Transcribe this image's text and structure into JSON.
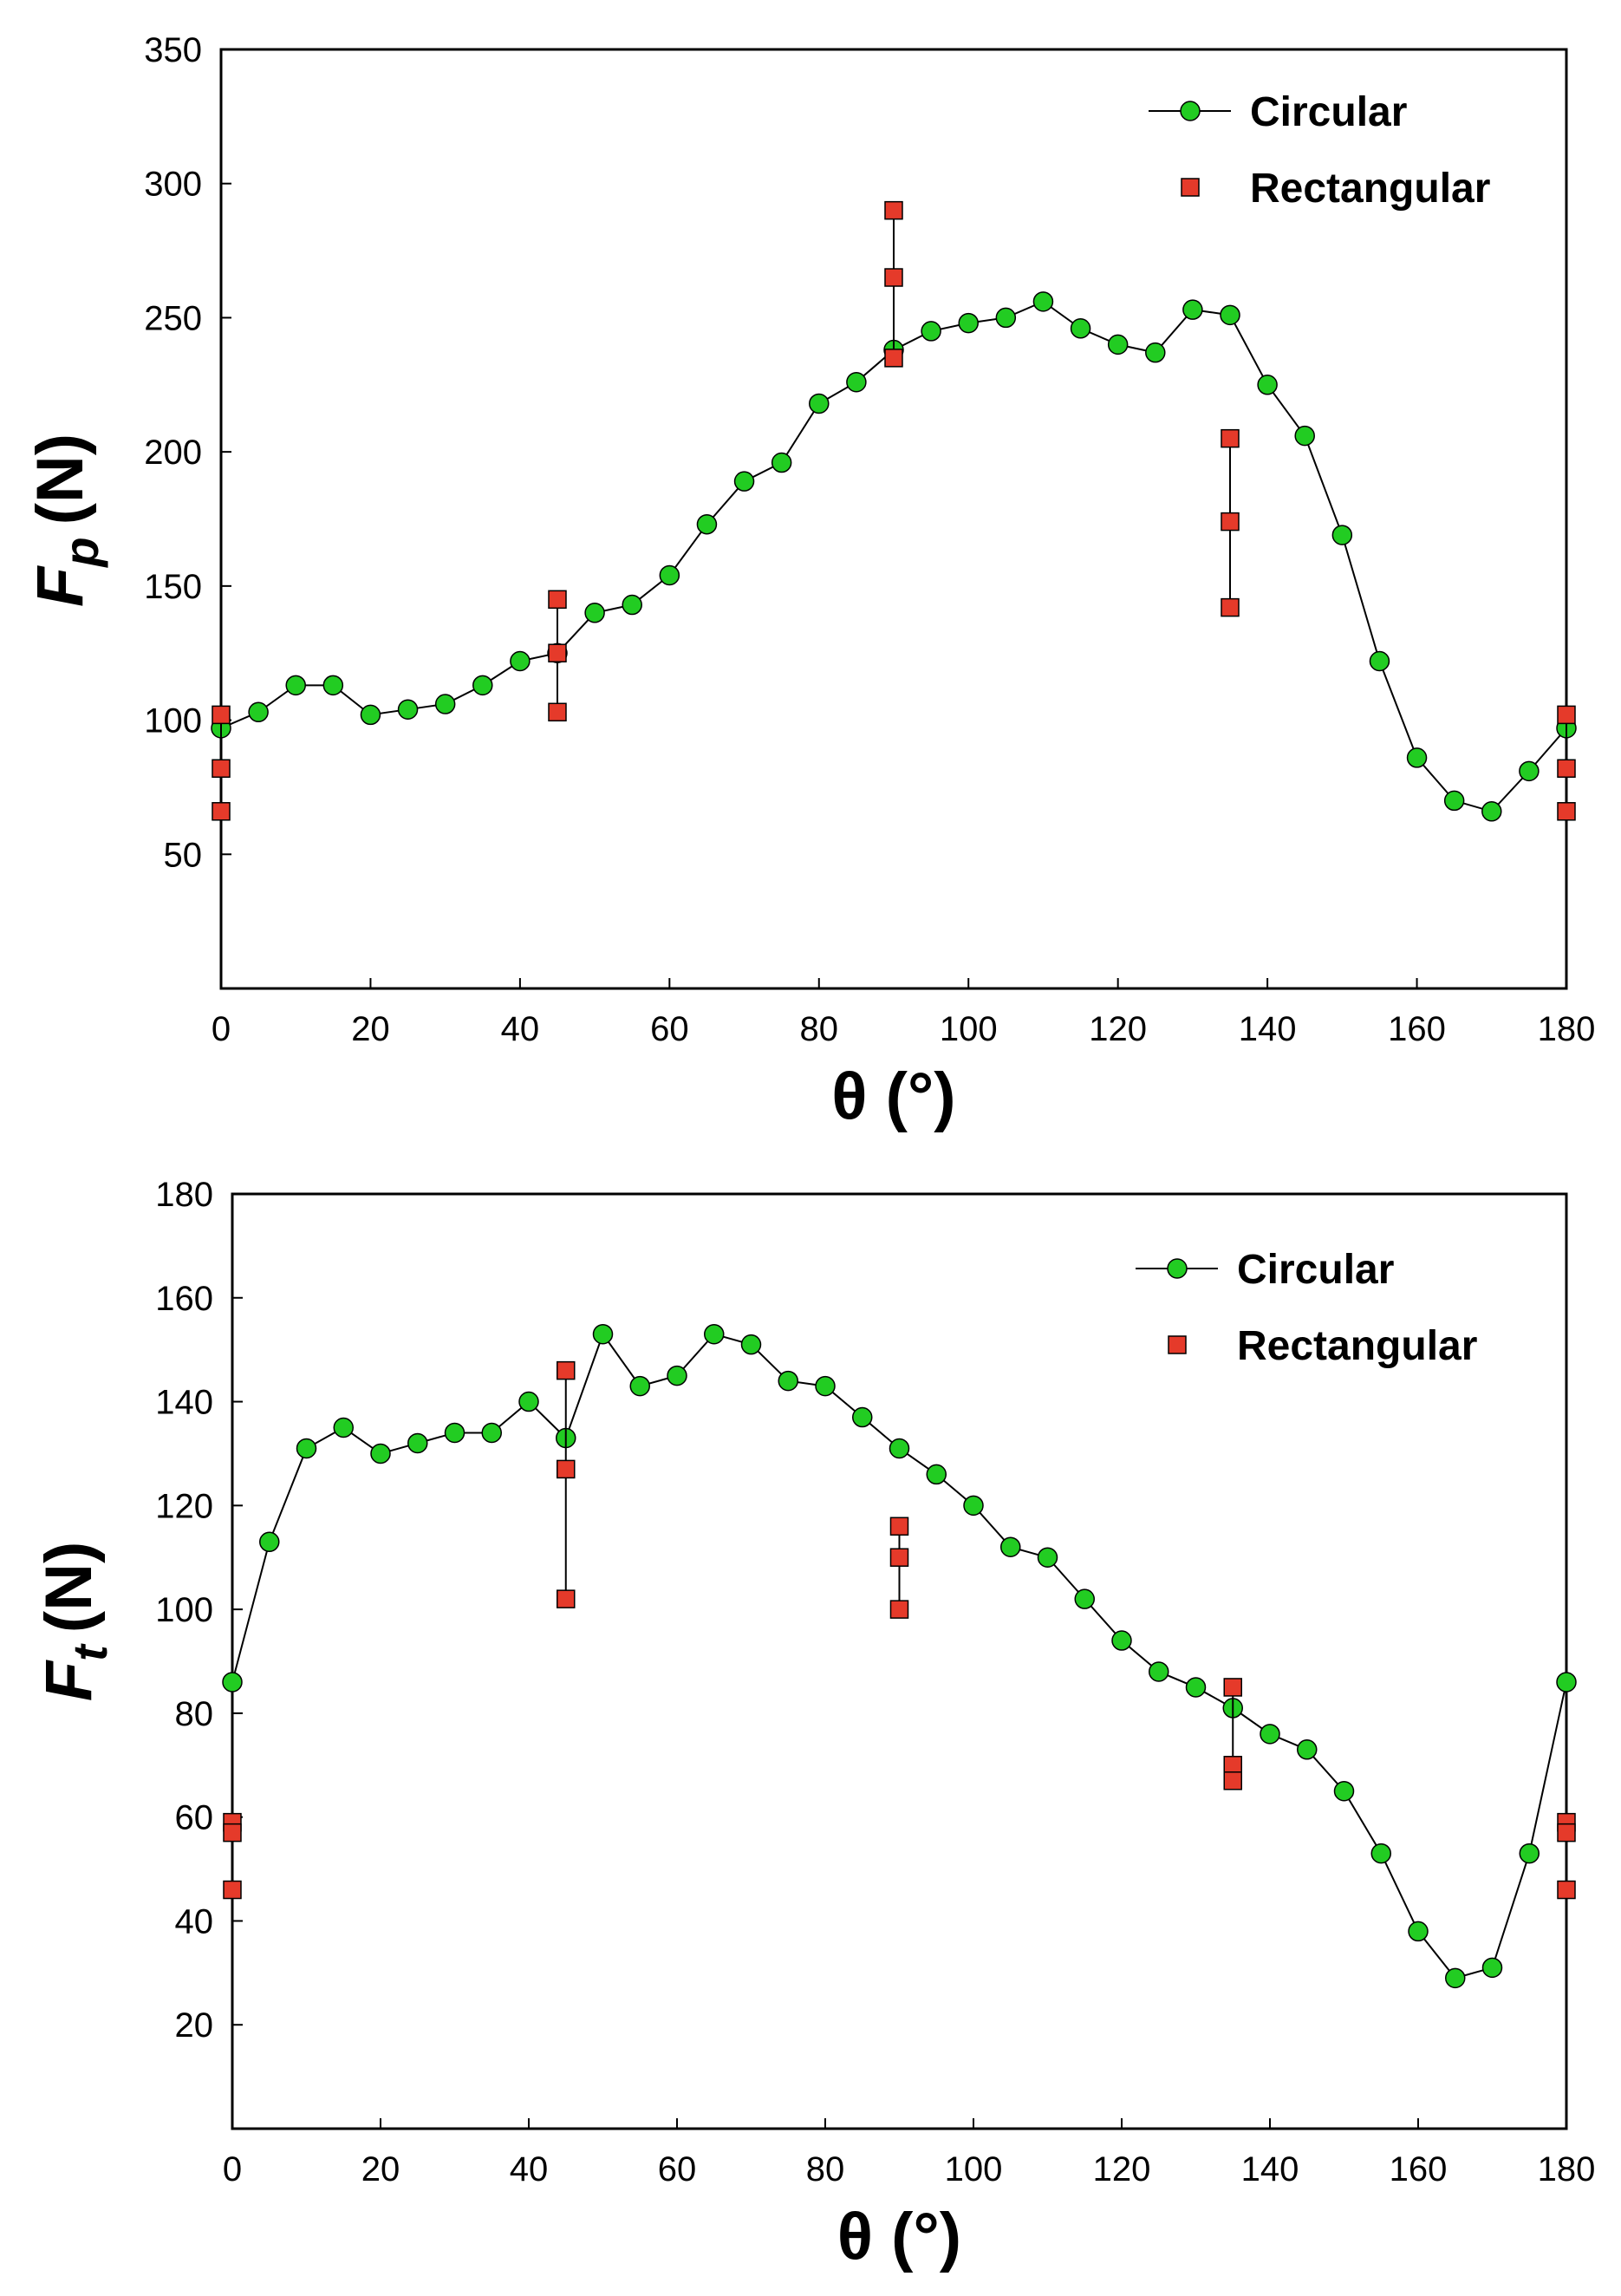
{
  "chart_data": [
    {
      "type": "scatter",
      "title": "",
      "xlabel": "θ (°)",
      "ylabel": {
        "main": "F",
        "sub": "p",
        "unit": "(N)"
      },
      "xlim": [
        0,
        180
      ],
      "ylim": [
        0,
        350
      ],
      "xticks": [
        0,
        20,
        40,
        60,
        80,
        100,
        120,
        140,
        160,
        180
      ],
      "yticks": [
        50,
        100,
        150,
        200,
        250,
        300,
        350
      ],
      "grid": false,
      "legend_position": "top-right",
      "series": [
        {
          "name": "Circular",
          "style": "line-markers",
          "marker": "circle",
          "color": "#22cc22",
          "x": [
            0,
            5,
            10,
            15,
            20,
            25,
            30,
            35,
            40,
            45,
            50,
            55,
            60,
            65,
            70,
            75,
            80,
            85,
            90,
            95,
            100,
            105,
            110,
            115,
            120,
            125,
            130,
            135,
            140,
            145,
            150,
            155,
            160,
            165,
            170,
            175,
            180
          ],
          "y": [
            97,
            103,
            113,
            113,
            102,
            104,
            106,
            113,
            122,
            125,
            140,
            143,
            154,
            173,
            189,
            196,
            218,
            226,
            238,
            245,
            248,
            250,
            256,
            246,
            240,
            237,
            253,
            251,
            225,
            206,
            169,
            122,
            86,
            70,
            66,
            81,
            97
          ]
        },
        {
          "name": "Rectangular",
          "style": "markers-with-range",
          "marker": "square",
          "color": "#e53a2a",
          "points": [
            {
              "x": 0,
              "y": [
                102,
                82,
                66
              ]
            },
            {
              "x": 45,
              "y": [
                145,
                125,
                103
              ]
            },
            {
              "x": 90,
              "y": [
                290,
                265,
                235
              ]
            },
            {
              "x": 135,
              "y": [
                205,
                174,
                142
              ]
            },
            {
              "x": 180,
              "y": [
                102,
                82,
                66
              ]
            }
          ]
        }
      ]
    },
    {
      "type": "scatter",
      "title": "",
      "xlabel": "θ (°)",
      "ylabel": {
        "main": "F",
        "sub": "t",
        "unit": "(N)"
      },
      "xlim": [
        0,
        180
      ],
      "ylim": [
        0,
        180
      ],
      "xticks": [
        0,
        20,
        40,
        60,
        80,
        100,
        120,
        140,
        160,
        180
      ],
      "yticks": [
        20,
        40,
        60,
        80,
        100,
        120,
        140,
        160,
        180
      ],
      "grid": false,
      "legend_position": "top-right",
      "series": [
        {
          "name": "Circular",
          "style": "line-markers",
          "marker": "circle",
          "color": "#22cc22",
          "x": [
            0,
            5,
            10,
            15,
            20,
            25,
            30,
            35,
            40,
            45,
            50,
            55,
            60,
            65,
            70,
            75,
            80,
            85,
            90,
            95,
            100,
            105,
            110,
            115,
            120,
            125,
            130,
            135,
            140,
            145,
            150,
            155,
            160,
            165,
            170,
            175,
            180
          ],
          "y": [
            86,
            113,
            131,
            135,
            130,
            132,
            134,
            134,
            140,
            133,
            153,
            143,
            145,
            153,
            151,
            144,
            143,
            137,
            131,
            126,
            120,
            112,
            110,
            102,
            94,
            88,
            85,
            81,
            76,
            73,
            65,
            53,
            38,
            29,
            31,
            53,
            86
          ]
        },
        {
          "name": "Rectangular",
          "style": "markers-with-range",
          "marker": "square",
          "color": "#e53a2a",
          "points": [
            {
              "x": 0,
              "y": [
                59,
                57,
                46
              ]
            },
            {
              "x": 45,
              "y": [
                146,
                127,
                102
              ]
            },
            {
              "x": 90,
              "y": [
                116,
                110,
                100
              ]
            },
            {
              "x": 135,
              "y": [
                85,
                70,
                67
              ]
            },
            {
              "x": 180,
              "y": [
                59,
                57,
                46
              ]
            }
          ]
        }
      ]
    }
  ]
}
